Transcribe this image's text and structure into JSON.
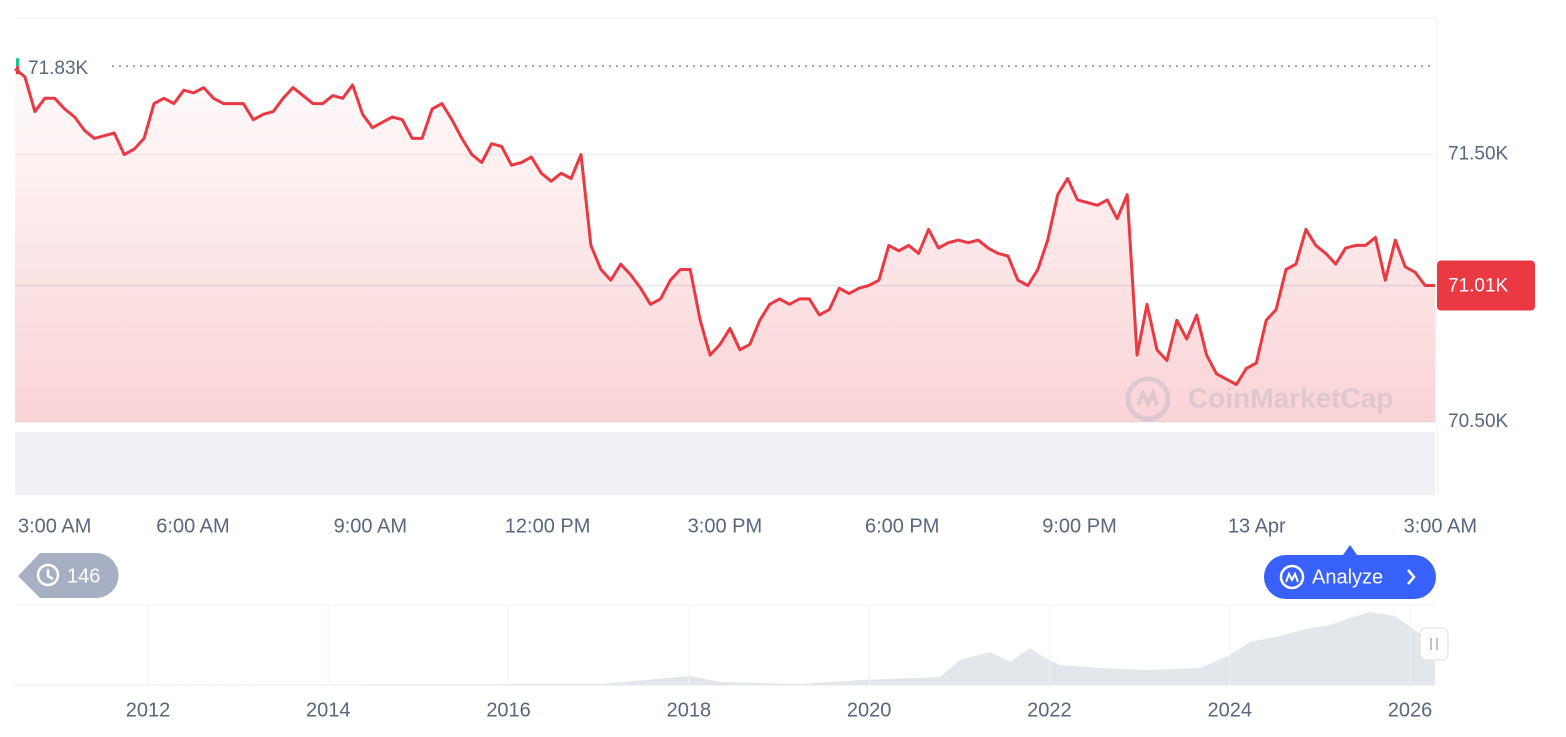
{
  "chart_data": {
    "type": "line",
    "series": [
      {
        "name": "Price",
        "color": "#ea3943",
        "values": [
          71820,
          71790,
          71660,
          71710,
          71710,
          71670,
          71640,
          71590,
          71560,
          71570,
          71580,
          71500,
          71520,
          71560,
          71690,
          71710,
          71690,
          71740,
          71730,
          71750,
          71710,
          71690,
          71690,
          71690,
          71630,
          71650,
          71660,
          71710,
          71750,
          71720,
          71690,
          71690,
          71720,
          71710,
          71760,
          71650,
          71600,
          71620,
          71640,
          71630,
          71560,
          71560,
          71670,
          71690,
          71630,
          71560,
          71500,
          71470,
          71540,
          71530,
          71460,
          71470,
          71490,
          71430,
          71400,
          71430,
          71410,
          71500,
          71160,
          71070,
          71030,
          71090,
          71050,
          71000,
          70940,
          70960,
          71030,
          71070,
          71070,
          70880,
          70750,
          70790,
          70850,
          70770,
          70790,
          70880,
          70940,
          70960,
          70940,
          70960,
          70960,
          70900,
          70920,
          71000,
          70980,
          71000,
          71010,
          71030,
          71160,
          71140,
          71160,
          71130,
          71220,
          71150,
          71170,
          71180,
          71170,
          71180,
          71150,
          71130,
          71120,
          71030,
          71010,
          71070,
          71180,
          71350,
          71410,
          71330,
          71320,
          71310,
          71330,
          71260,
          71350,
          70750,
          70940,
          70770,
          70730,
          70880,
          70810,
          70900,
          70750,
          70680,
          70660,
          70640,
          70700,
          70720,
          70880,
          70920,
          71070,
          71090,
          71220,
          71160,
          71130,
          71090,
          71150,
          71160,
          71160,
          71190,
          71030,
          71180,
          71080,
          71060,
          71010,
          71010
        ]
      }
    ],
    "x_tick_labels": [
      "3:00 AM",
      "6:00 AM",
      "9:00 AM",
      "12:00 PM",
      "3:00 PM",
      "6:00 PM",
      "9:00 PM",
      "13 Apr",
      "3:00 AM"
    ],
    "ylim": [
      70500,
      72010
    ],
    "yticks": [
      {
        "value": 70500,
        "label": "70.50K"
      },
      {
        "value": 71500,
        "label": "71.50K"
      }
    ],
    "grid": true,
    "current_price": {
      "value": 71010,
      "label": "71.01K"
    },
    "high": {
      "value": 71830,
      "label": "71.83K"
    },
    "watermark": "CoinMarketCap",
    "history_count": 146,
    "analyze_button": "Analyze",
    "navigator": {
      "xticks": [
        2012,
        2014,
        2016,
        2018,
        2020,
        2022,
        2024,
        2026
      ]
    }
  }
}
